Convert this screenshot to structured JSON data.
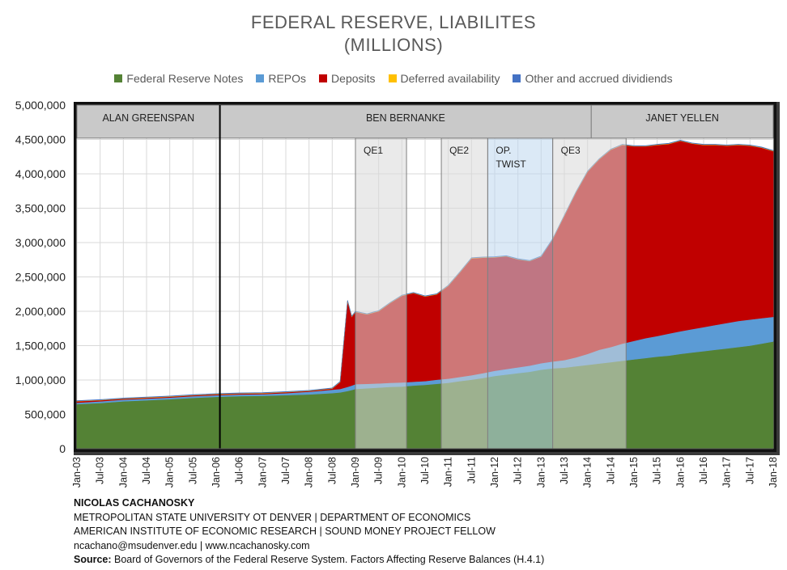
{
  "chart_data": {
    "type": "area",
    "title_line1": "FEDERAL RESERVE, LIABILITES",
    "title_line2": "(MILLIONS)",
    "ylim": [
      0,
      5000000
    ],
    "y_ticks": [
      0,
      500000,
      1000000,
      1500000,
      2000000,
      2500000,
      3000000,
      3500000,
      4000000,
      4500000,
      5000000
    ],
    "y_tick_labels": [
      "0",
      "500,000",
      "1,000,000",
      "1,500,000",
      "2,000,000",
      "2,500,000",
      "3,000,000",
      "3,500,000",
      "4,000,000",
      "4,500,000",
      "5,000,000"
    ],
    "x_range": [
      2003.0,
      2018.0
    ],
    "x_ticks": [
      2003.0,
      2003.5,
      2004.0,
      2004.5,
      2005.0,
      2005.5,
      2006.0,
      2006.5,
      2007.0,
      2007.5,
      2008.0,
      2008.5,
      2009.0,
      2009.5,
      2010.0,
      2010.5,
      2011.0,
      2011.5,
      2012.0,
      2012.5,
      2013.0,
      2013.5,
      2014.0,
      2014.5,
      2015.0,
      2015.5,
      2016.0,
      2016.5,
      2017.0,
      2017.5,
      2018.0
    ],
    "x_tick_labels": [
      "Jan-03",
      "Jul-03",
      "Jan-04",
      "Jul-04",
      "Jan-05",
      "Jul-05",
      "Jan-06",
      "Jul-06",
      "Jan-07",
      "Jul-07",
      "Jan-08",
      "Jul-08",
      "Jan-09",
      "Jul-09",
      "Jan-10",
      "Jul-10",
      "Jan-11",
      "Jul-11",
      "Jan-12",
      "Jul-12",
      "Jan-13",
      "Jul-13",
      "Jan-14",
      "Jul-14",
      "Jan-15",
      "Jul-15",
      "Jan-16",
      "Jul-16",
      "Jan-17",
      "Jul-17",
      "Jan-18"
    ],
    "x": [
      2003.0,
      2003.5,
      2004.0,
      2004.5,
      2005.0,
      2005.5,
      2006.0,
      2006.5,
      2007.0,
      2007.5,
      2008.0,
      2008.5,
      2008.67,
      2008.83,
      2008.92,
      2009.0,
      2009.25,
      2009.5,
      2009.75,
      2010.0,
      2010.25,
      2010.5,
      2010.75,
      2011.0,
      2011.25,
      2011.5,
      2011.75,
      2012.0,
      2012.25,
      2012.5,
      2012.75,
      2013.0,
      2013.25,
      2013.5,
      2013.75,
      2014.0,
      2014.25,
      2014.5,
      2014.75,
      2015.0,
      2015.25,
      2015.5,
      2015.75,
      2016.0,
      2016.25,
      2016.5,
      2016.75,
      2017.0,
      2017.25,
      2017.5,
      2017.75,
      2018.0
    ],
    "series": [
      {
        "name": "Federal Reserve Notes",
        "color": "#548235",
        "values": [
          650000,
          665000,
          690000,
          705000,
          720000,
          740000,
          755000,
          765000,
          770000,
          780000,
          790000,
          810000,
          820000,
          840000,
          855000,
          870000,
          880000,
          890000,
          900000,
          905000,
          920000,
          930000,
          945000,
          960000,
          985000,
          1005000,
          1030000,
          1060000,
          1080000,
          1100000,
          1120000,
          1150000,
          1170000,
          1180000,
          1200000,
          1220000,
          1240000,
          1260000,
          1280000,
          1300000,
          1320000,
          1340000,
          1355000,
          1380000,
          1400000,
          1420000,
          1440000,
          1460000,
          1480000,
          1500000,
          1530000,
          1560000
        ]
      },
      {
        "name": "REPOs",
        "color": "#5b9bd5",
        "values": [
          20000,
          25000,
          25000,
          25000,
          25000,
          25000,
          25000,
          25000,
          25000,
          30000,
          40000,
          50000,
          50000,
          60000,
          65000,
          70000,
          65000,
          60000,
          60000,
          60000,
          55000,
          55000,
          60000,
          60000,
          60000,
          65000,
          70000,
          75000,
          80000,
          85000,
          90000,
          95000,
          100000,
          110000,
          130000,
          160000,
          200000,
          220000,
          250000,
          270000,
          290000,
          300000,
          320000,
          330000,
          340000,
          350000,
          360000,
          370000,
          380000,
          380000,
          370000,
          360000
        ]
      },
      {
        "name": "Deposits",
        "color": "#c00000",
        "values": [
          20000,
          15000,
          12000,
          12000,
          12000,
          12000,
          12000,
          12000,
          12000,
          12000,
          10000,
          15000,
          100000,
          1250000,
          1000000,
          1050000,
          1010000,
          1050000,
          1160000,
          1260000,
          1290000,
          1230000,
          1240000,
          1350000,
          1520000,
          1700000,
          1680000,
          1650000,
          1640000,
          1570000,
          1520000,
          1550000,
          1780000,
          2100000,
          2400000,
          2650000,
          2770000,
          2870000,
          2890000,
          2830000,
          2790000,
          2780000,
          2760000,
          2770000,
          2700000,
          2650000,
          2620000,
          2580000,
          2560000,
          2530000,
          2480000,
          2410000
        ]
      },
      {
        "name": "Deferred availability",
        "color": "#ffc000",
        "values": [
          5000,
          5000,
          5000,
          5000,
          5000,
          5000,
          5000,
          5000,
          5000,
          5000,
          5000,
          5000,
          5000,
          5000,
          5000,
          5000,
          5000,
          5000,
          5000,
          5000,
          5000,
          5000,
          5000,
          5000,
          5000,
          5000,
          5000,
          5000,
          5000,
          5000,
          5000,
          5000,
          5000,
          5000,
          5000,
          5000,
          5000,
          5000,
          5000,
          5000,
          5000,
          5000,
          5000,
          5000,
          5000,
          5000,
          5000,
          5000,
          5000,
          5000,
          5000,
          5000
        ]
      },
      {
        "name": "Other and accrued dividiends",
        "color": "#4472c4",
        "values": [
          5000,
          5000,
          5000,
          5000,
          5000,
          5000,
          5000,
          5000,
          5000,
          5000,
          5000,
          5000,
          5000,
          5000,
          5000,
          5000,
          5000,
          5000,
          5000,
          5000,
          5000,
          5000,
          5000,
          5000,
          5000,
          5000,
          5000,
          5000,
          5000,
          5000,
          5000,
          5000,
          5000,
          5000,
          5000,
          5000,
          5000,
          5000,
          5000,
          5000,
          5000,
          5000,
          5000,
          5000,
          5000,
          5000,
          5000,
          5000,
          5000,
          5000,
          5000,
          5000
        ]
      }
    ],
    "chairs": [
      {
        "label": "ALAN GREENSPAN",
        "start": 2003.0,
        "end": 2006.08
      },
      {
        "label": "BEN BERNANKE",
        "start": 2006.08,
        "end": 2014.08
      },
      {
        "label": "JANET YELLEN",
        "start": 2014.08,
        "end": 2018.0
      }
    ],
    "programs": [
      {
        "label": "QE1",
        "start": 2009.0,
        "end": 2010.1,
        "shade": "gray"
      },
      {
        "label": "QE2",
        "start": 2010.85,
        "end": 2011.85,
        "shade": "gray"
      },
      {
        "label": "OP. TWIST",
        "start": 2011.85,
        "end": 2013.25,
        "shade": "blue"
      },
      {
        "label": "QE3",
        "start": 2013.25,
        "end": 2014.83,
        "shade": "gray"
      }
    ]
  },
  "credits": {
    "author": "NICOLAS CACHANOSKY",
    "line1": "METROPOLITAN STATE UNIVERSITY OT DENVER | DEPARTMENT OF ECONOMICS",
    "line2": "AMERICAN INSTITUTE OF ECONOMIC RESEARCH | SOUND MONEY PROJECT FELLOW",
    "line3": "ncachano@msudenver.edu  |  www.ncachanosky.com",
    "source_label": "Source:",
    "source_text": " Board of Governors of the Federal Reserve System. Factors Affecting Reserve Balances (H.4.1)"
  }
}
